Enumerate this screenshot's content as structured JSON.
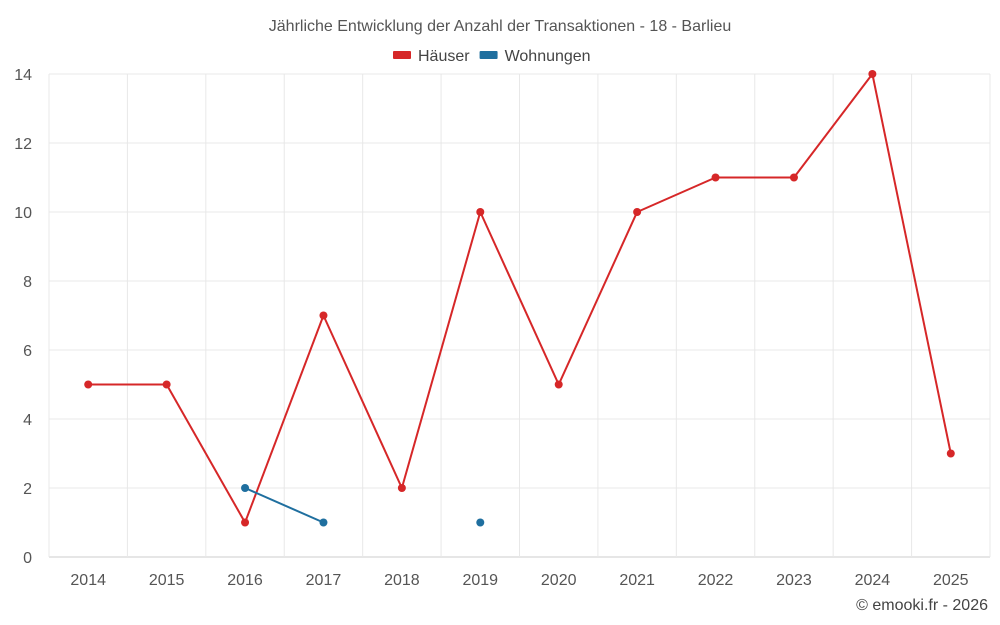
{
  "chart_data": {
    "type": "line",
    "title": "Jährliche Entwicklung der Anzahl der Transaktionen - 18 - Barlieu",
    "categories": [
      "2014",
      "2015",
      "2016",
      "2017",
      "2018",
      "2019",
      "2020",
      "2021",
      "2022",
      "2023",
      "2024",
      "2025"
    ],
    "ylim": [
      0,
      14
    ],
    "yticks": [
      0,
      2,
      4,
      6,
      8,
      10,
      12,
      14
    ],
    "grid": true,
    "legend_position": "top-center",
    "series": [
      {
        "name": "Häuser",
        "color": "#d62728",
        "values": [
          5,
          5,
          1,
          7,
          2,
          10,
          5,
          10,
          11,
          11,
          14,
          3
        ]
      },
      {
        "name": "Wohnungen",
        "color": "#1f6f9f",
        "values": [
          null,
          null,
          2,
          1,
          null,
          1,
          null,
          null,
          null,
          null,
          null,
          null
        ]
      }
    ]
  },
  "credit": "© emooki.fr - 2026"
}
